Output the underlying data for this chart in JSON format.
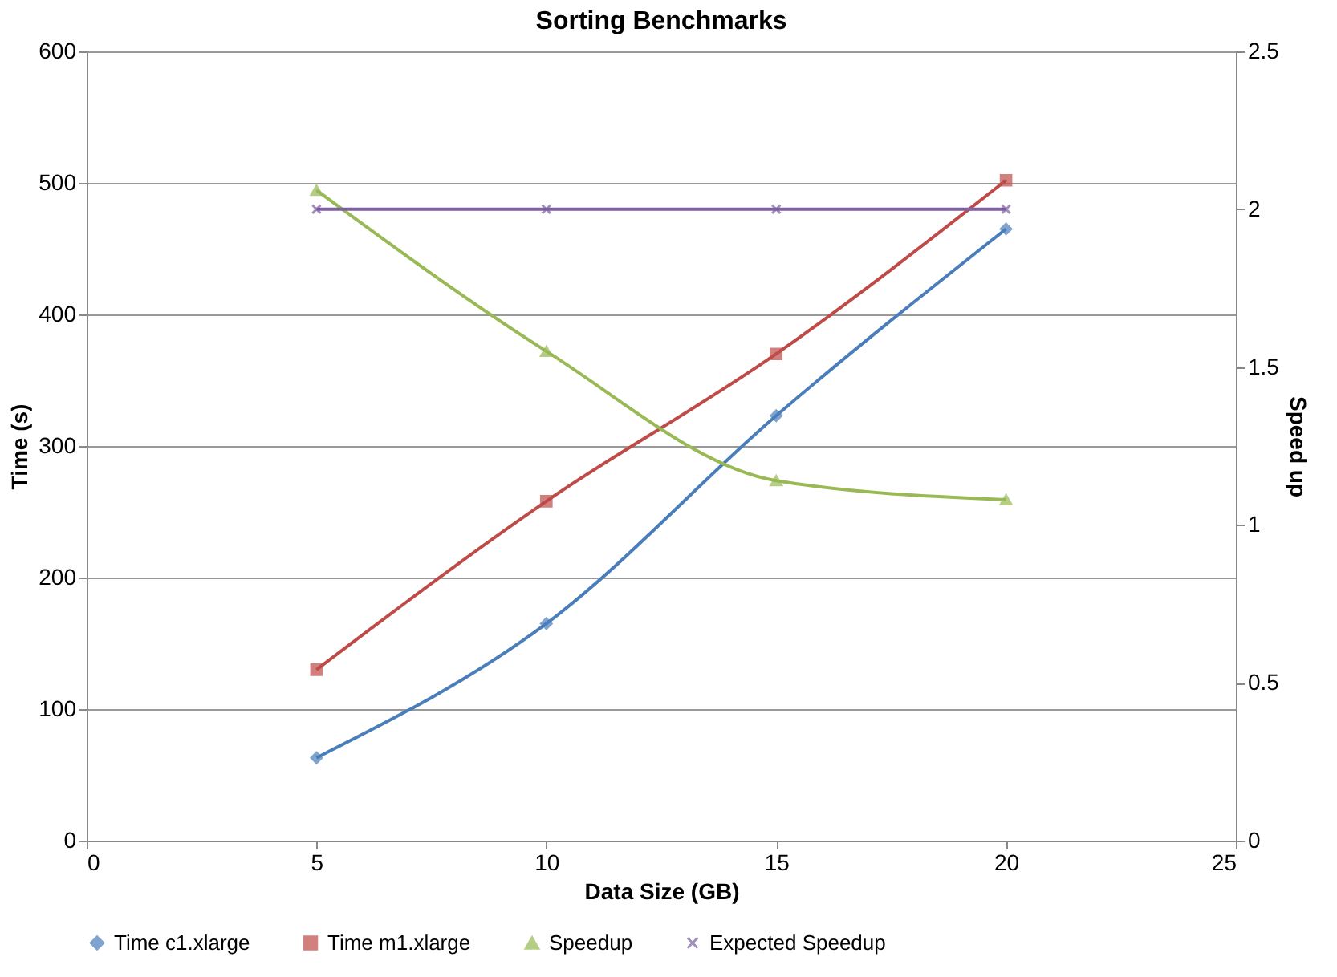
{
  "chart_data": {
    "type": "line",
    "title": "Sorting Benchmarks",
    "xlabel": "Data Size (GB)",
    "ylabel": "Time (s)",
    "y2label": "Speed up",
    "xlim": [
      0,
      25
    ],
    "xticks": [
      0,
      5,
      10,
      15,
      20,
      25
    ],
    "ylim": [
      0,
      600
    ],
    "yticks": [
      0,
      100,
      200,
      300,
      400,
      500,
      600
    ],
    "y2lim": [
      0,
      2.5
    ],
    "y2ticks": [
      0,
      0.5,
      1,
      1.5,
      2,
      2.5
    ],
    "grid": "y",
    "legend": "bottom",
    "line_style": "solid",
    "series": [
      {
        "name": "Time c1.xlarge",
        "color": "#4a7ebb",
        "marker": "diamond",
        "x": [
          5,
          10,
          15,
          20
        ],
        "values": [
          63,
          165,
          323,
          465
        ]
      },
      {
        "name": "Time m1.xlarge",
        "color": "#be4b48",
        "marker": "square",
        "x": [
          5,
          10,
          15,
          20
        ],
        "values": [
          130,
          258,
          370,
          502
        ]
      },
      {
        "name": "Speedup",
        "color": "#98b954",
        "marker": "triangle",
        "axis": "y2",
        "x": [
          5,
          10,
          15,
          20
        ],
        "values": [
          2.06,
          1.55,
          1.14,
          1.08
        ]
      },
      {
        "name": "Expected Speedup",
        "color": "#7d60a0",
        "marker": "cross",
        "axis": "y2",
        "x": [
          5,
          10,
          15,
          20
        ],
        "values": [
          2,
          2,
          2,
          2
        ]
      }
    ]
  }
}
